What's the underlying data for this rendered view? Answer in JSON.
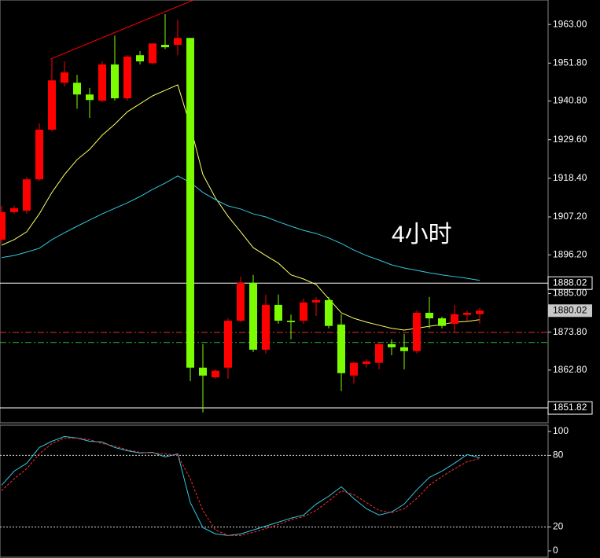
{
  "chart_data": [
    {
      "type": "candlestick",
      "up_color": "#ff0000",
      "down_color": "#7cfc00",
      "open": [
        1900.6,
        1908.6,
        1909.0,
        1918.1,
        1932.5,
        1946.1,
        1946.1,
        1942.7,
        1940.9,
        1951.4,
        1941.6,
        1954.1,
        1951.8,
        1957.1,
        1957.1,
        1959.1,
        1863.5,
        1860.7,
        1863.5,
        1877.1,
        1888.1,
        1868.7,
        1881.7,
        1877.1,
        1877.1,
        1882.4,
        1883.1,
        1876.0,
        1861.2,
        1864.6,
        1864.9,
        1870.3,
        1869.4,
        1868.3,
        1879.4,
        1877.8,
        1876.2,
        1878.8,
        1879.0
      ],
      "high": [
        1910.4,
        1910.4,
        1918.8,
        1934.3,
        1953.0,
        1952.3,
        1948.4,
        1944.6,
        1952.3,
        1959.8,
        1954.1,
        1955.3,
        1957.5,
        1966.0,
        1964.4,
        1959.1,
        1870.3,
        1863.0,
        1877.8,
        1889.9,
        1890.4,
        1884.7,
        1884.7,
        1878.9,
        1883.5,
        1884.0,
        1884.0,
        1879.0,
        1865.3,
        1866.0,
        1871.0,
        1871.7,
        1873.3,
        1880.1,
        1884.0,
        1878.3,
        1881.7,
        1880.1,
        1880.8
      ],
      "low": [
        1899.5,
        1908.1,
        1908.1,
        1917.7,
        1932.0,
        1945.0,
        1938.6,
        1935.9,
        1940.5,
        1940.9,
        1940.9,
        1951.4,
        1951.4,
        1955.9,
        1954.1,
        1859.6,
        1850.5,
        1860.3,
        1860.3,
        1876.7,
        1868.0,
        1867.6,
        1876.2,
        1871.7,
        1876.2,
        1878.5,
        1874.9,
        1856.7,
        1858.9,
        1863.5,
        1863.0,
        1867.1,
        1863.0,
        1867.6,
        1874.9,
        1874.9,
        1873.9,
        1877.1,
        1876.2
      ],
      "close": [
        1908.6,
        1909.7,
        1918.1,
        1932.5,
        1946.8,
        1949.1,
        1942.7,
        1941.1,
        1951.4,
        1941.6,
        1953.7,
        1952.3,
        1957.5,
        1956.4,
        1959.1,
        1863.5,
        1861.2,
        1862.6,
        1877.1,
        1888.1,
        1868.7,
        1881.7,
        1877.1,
        1876.7,
        1882.4,
        1883.1,
        1875.6,
        1861.9,
        1864.9,
        1865.3,
        1870.3,
        1869.4,
        1868.3,
        1879.4,
        1877.8,
        1875.6,
        1879.0,
        1879.4,
        1880.02
      ],
      "series": [
        {
          "color": "#ffff66",
          "values": [
            1899.0,
            1900.6,
            1902.9,
            1908.1,
            1914.3,
            1919.5,
            1923.8,
            1926.8,
            1930.9,
            1934.1,
            1937.7,
            1940.0,
            1942.3,
            1943.9,
            1945.5,
            1933.6,
            1919.5,
            1912.7,
            1907.4,
            1902.9,
            1898.3,
            1896.0,
            1893.8,
            1890.4,
            1889.2,
            1887.6,
            1883.5,
            1879.4,
            1877.8,
            1876.7,
            1875.8,
            1874.9,
            1874.4,
            1874.9,
            1875.5,
            1876.0,
            1876.7,
            1876.9,
            1877.4
          ]
        },
        {
          "color": "#33c8e0",
          "values": [
            1895.4,
            1896.0,
            1897.0,
            1898.1,
            1900.6,
            1902.6,
            1904.5,
            1906.3,
            1908.1,
            1909.7,
            1911.3,
            1913.1,
            1915.2,
            1917.0,
            1919.1,
            1917.2,
            1914.3,
            1912.2,
            1910.4,
            1909.5,
            1908.1,
            1907.2,
            1905.8,
            1904.5,
            1903.3,
            1902.4,
            1901.1,
            1899.5,
            1897.6,
            1896.0,
            1894.7,
            1893.3,
            1892.4,
            1891.7,
            1891.0,
            1890.4,
            1889.9,
            1889.4,
            1888.8
          ]
        }
      ],
      "trendline": {
        "x": [
          3.9,
          15.2
        ],
        "y": [
          1953.0,
          1970.0
        ],
        "color": "#ff0000"
      },
      "hlines": [
        {
          "value": 1888.02,
          "color": "#ffffff",
          "style": "solid",
          "label": true
        },
        {
          "value": 1851.82,
          "color": "#ffffff",
          "style": "solid",
          "label": true
        },
        {
          "value": 1873.7,
          "color": "#e03030",
          "style": "dashdot",
          "label": false
        },
        {
          "value": 1870.8,
          "color": "#30c030",
          "style": "dashdot",
          "label": false
        }
      ],
      "last_price": 1880.02,
      "annotation": "4小时",
      "ylim": [
        1847.5,
        1970.1
      ],
      "yticks": [
        {
          "value": 1963,
          "label": "1963.00"
        },
        {
          "value": 1951.8,
          "label": "1951.80"
        },
        {
          "value": 1940.8,
          "label": "1940.80"
        },
        {
          "value": 1929.6,
          "label": "1929.60"
        },
        {
          "value": 1918.4,
          "label": "1918.40"
        },
        {
          "value": 1907.2,
          "label": "1907.20"
        },
        {
          "value": 1896.2,
          "label": "1896.20"
        },
        {
          "value": 1885,
          "label": "1885.00"
        },
        {
          "value": 1873.8,
          "label": "1873.80"
        },
        {
          "value": 1862.8,
          "label": "1862.80"
        }
      ]
    },
    {
      "type": "line",
      "series": [
        {
          "color": "#33c8e0",
          "style": "solid",
          "values": [
            55.0,
            66.8,
            73.4,
            86.6,
            91.8,
            95.8,
            94.5,
            91.8,
            91.2,
            86.6,
            83.9,
            82.0,
            82.6,
            78.7,
            81.3,
            40.5,
            19.5,
            14.2,
            12.9,
            14.2,
            17.5,
            20.8,
            24.1,
            27.4,
            30.0,
            39.2,
            45.8,
            53.7,
            43.8,
            35.3,
            30.0,
            32.6,
            39.2,
            51.1,
            61.6,
            66.8,
            73.4,
            80.7,
            78.0
          ]
        },
        {
          "color": "#ff3030",
          "style": "dashed",
          "values": [
            50.4,
            60.3,
            68.8,
            81.3,
            89.9,
            94.5,
            94.5,
            93.2,
            89.9,
            87.9,
            84.6,
            82.6,
            82.0,
            81.3,
            80.0,
            60.3,
            33.9,
            17.5,
            12.9,
            12.9,
            15.5,
            18.8,
            22.1,
            26.1,
            28.7,
            33.9,
            41.8,
            50.4,
            47.1,
            40.5,
            33.9,
            32.0,
            35.3,
            43.8,
            55.0,
            62.2,
            68.8,
            74.7,
            77.4
          ]
        }
      ],
      "levels": [
        80,
        20
      ],
      "ylim": [
        -5.3,
        105.3
      ],
      "yticks": [
        100,
        80,
        20,
        0
      ]
    }
  ]
}
